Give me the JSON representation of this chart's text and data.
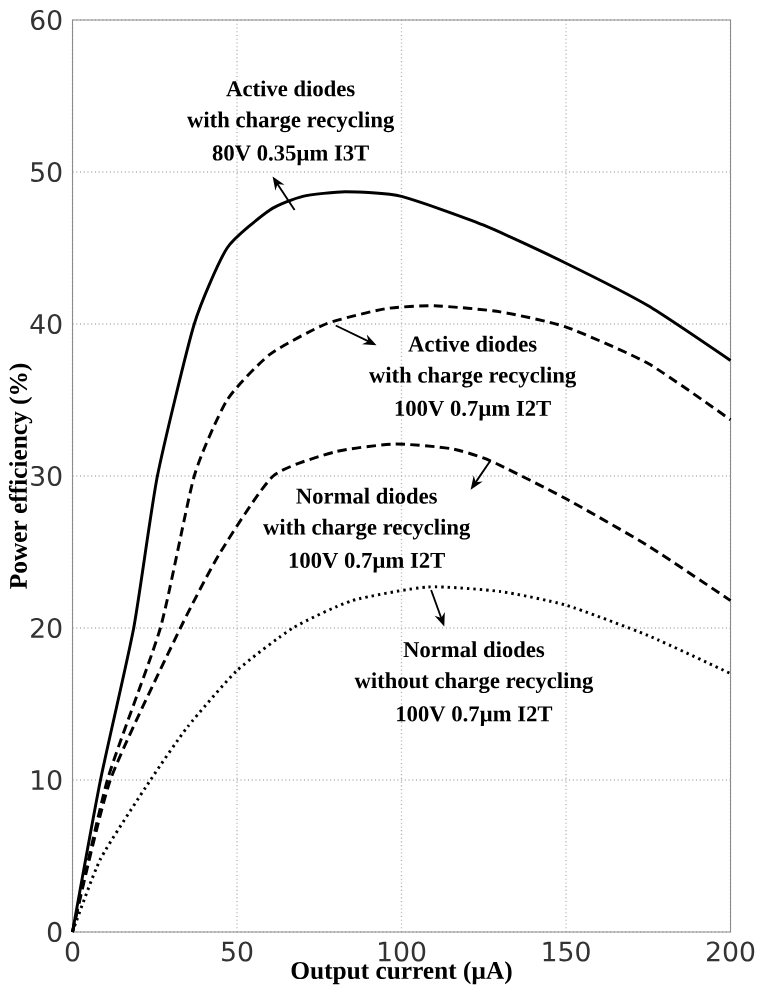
{
  "chart_data": {
    "type": "line",
    "xlabel": "Output current (µA)",
    "ylabel": "Power efficiency (%)",
    "xlim": [
      0,
      200
    ],
    "ylim": [
      0,
      60
    ],
    "xticks": [
      0,
      50,
      100,
      150,
      200
    ],
    "yticks": [
      0,
      10,
      20,
      30,
      40,
      50,
      60
    ],
    "grid": true,
    "marker": "none",
    "series": [
      {
        "color": "#000000",
        "line_style": "solid",
        "x": [
          0,
          8.5,
          18.6,
          25.8,
          37,
          47,
          60,
          70,
          83,
          100,
          125,
          150,
          175,
          200
        ],
        "values": [
          0,
          10,
          20,
          30,
          40,
          45,
          47.5,
          48.4,
          48.7,
          48.4,
          46.5,
          44.0,
          41.2,
          37.6
        ]
      },
      {
        "color": "#000000",
        "line_style": "dashed",
        "x": [
          0,
          10.6,
          26.7,
          37,
          47,
          60,
          77,
          95,
          110,
          130,
          150,
          175,
          200
        ],
        "values": [
          0,
          10,
          20,
          30,
          35,
          38,
          40,
          41,
          41.2,
          40.8,
          39.8,
          37.4,
          33.7
        ]
      },
      {
        "color": "#000000",
        "line_style": "dashed",
        "x": [
          0,
          11.5,
          32.8,
          45,
          61,
          80,
          98,
          115,
          127,
          150,
          175,
          200
        ],
        "values": [
          0,
          10,
          20,
          25,
          30,
          31.6,
          32.1,
          31.8,
          31,
          28.5,
          25.4,
          21.8
        ]
      },
      {
        "color": "#000000",
        "line_style": "dotted",
        "x": [
          0,
          8.5,
          23.7,
          35,
          50,
          67,
          85,
          108,
          130,
          150,
          175,
          200
        ],
        "values": [
          0,
          4.8,
          10,
          13.5,
          17.2,
          20,
          21.8,
          22.7,
          22.4,
          21.5,
          19.5,
          17.0
        ]
      }
    ],
    "annotations": [
      "Active diodes",
      "with charge recycling",
      "80V 0.35µm I3T",
      "Active diodes",
      "with charge recycling",
      "100V 0.7µm I2T",
      "Normal diodes",
      "with charge recycling",
      "100V 0.7µm I2T",
      "Normal diodes",
      "without charge recycling",
      "100V 0.7µm I2T"
    ]
  }
}
